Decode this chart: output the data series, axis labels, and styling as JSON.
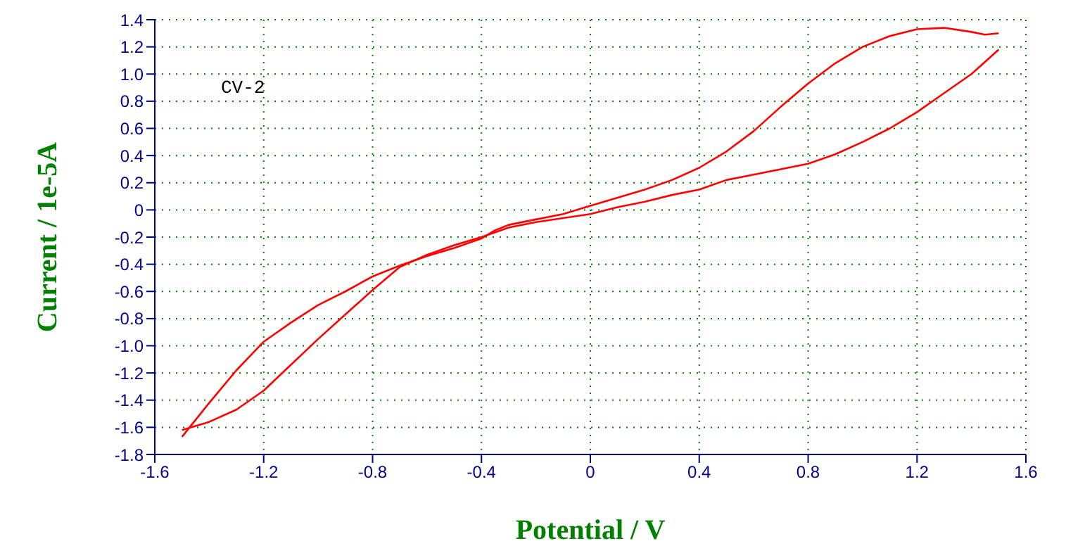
{
  "chart_data": {
    "type": "line",
    "xlabel": "Potential / V",
    "ylabel": "Current / 1e-5A",
    "annotations": [
      "CV-2"
    ],
    "grid": true,
    "marker": "none",
    "line_style": "solid",
    "xlim": [
      -1.6,
      1.6
    ],
    "xticks": [
      -1.6,
      -1.2,
      -0.8,
      -0.4,
      0,
      0.4,
      0.8,
      1.2,
      1.6
    ],
    "ylim": [
      -1.8,
      1.4
    ],
    "yticks": [
      {
        "value": -1.8,
        "label": "-1.8"
      },
      {
        "value": -1.6,
        "label": "-1.6"
      },
      {
        "value": -1.4,
        "label": "-1.4"
      },
      {
        "value": -1.2,
        "label": "-1.2"
      },
      {
        "value": -1,
        "label": "-1.0"
      },
      {
        "value": -0.8,
        "label": "-0.8"
      },
      {
        "value": -0.6,
        "label": "-0.6"
      },
      {
        "value": -0.4,
        "label": "-0.4"
      },
      {
        "value": -0.2,
        "label": "-0.2"
      },
      0,
      0.2,
      0.4,
      0.6,
      0.8,
      {
        "value": 1,
        "label": "1.0"
      },
      1.2,
      1.4
    ],
    "series": [
      {
        "color": "#ff0000",
        "x": [
          -1.5,
          -1.4,
          -1.3,
          -1.2,
          -1.1,
          -1.0,
          -0.9,
          -0.8,
          -0.7,
          -0.6,
          -0.5,
          -0.4,
          -0.35,
          -0.3,
          -0.2,
          -0.1,
          0,
          0.1,
          0.2,
          0.3,
          0.4,
          0.5,
          0.6,
          0.7,
          0.8,
          0.9,
          1.0,
          1.1,
          1.2,
          1.3,
          1.4,
          1.45,
          1.5
        ],
        "values": [
          -1.67,
          -1.42,
          -1.18,
          -0.97,
          -0.83,
          -0.7,
          -0.6,
          -0.49,
          -0.41,
          -0.34,
          -0.28,
          -0.21,
          -0.15,
          -0.11,
          -0.07,
          -0.03,
          0.03,
          0.09,
          0.15,
          0.22,
          0.31,
          0.43,
          0.58,
          0.76,
          0.93,
          1.08,
          1.2,
          1.28,
          1.33,
          1.34,
          1.31,
          1.29,
          1.3
        ]
      },
      {
        "color": "#ff0000",
        "x": [
          -1.5,
          -1.4,
          -1.3,
          -1.2,
          -1.1,
          -1.0,
          -0.9,
          -0.8,
          -0.7,
          -0.6,
          -0.5,
          -0.4,
          -0.3,
          -0.2,
          -0.1,
          0,
          0.1,
          0.2,
          0.3,
          0.4,
          0.5,
          0.6,
          0.7,
          0.8,
          0.9,
          1.0,
          1.1,
          1.2,
          1.3,
          1.4,
          1.5
        ],
        "values": [
          -1.62,
          -1.56,
          -1.47,
          -1.33,
          -1.14,
          -0.95,
          -0.77,
          -0.59,
          -0.42,
          -0.33,
          -0.26,
          -0.2,
          -0.13,
          -0.09,
          -0.06,
          -0.03,
          0.02,
          0.06,
          0.11,
          0.15,
          0.22,
          0.26,
          0.3,
          0.34,
          0.41,
          0.5,
          0.6,
          0.72,
          0.86,
          1.0,
          1.18
        ]
      }
    ]
  }
}
